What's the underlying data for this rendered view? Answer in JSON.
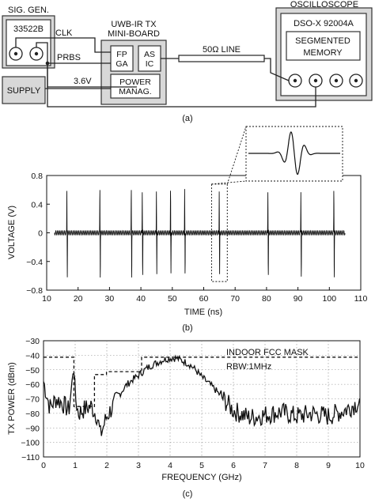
{
  "diagram": {
    "panel_label": "(a)",
    "sig_gen": {
      "title": "SIG. GEN.",
      "model": "33522B"
    },
    "tx_board": {
      "title_line1": "UWB-IR TX",
      "title_line2": "MINI-BOARD"
    },
    "fpga": {
      "line1": "FP",
      "line2": "GA"
    },
    "asic": {
      "line1": "AS",
      "line2": "IC"
    },
    "power": {
      "line1": "POWER",
      "line2": "MANAG."
    },
    "supply": "SUPPLY",
    "clk": "CLK",
    "prbs": "PRBS",
    "voltage": "3.6V",
    "line": "50Ω LINE",
    "scope": {
      "title": "OSCILLOSCOPE",
      "model": "DSO-X 92004A",
      "mem_line1": "SEGMENTED",
      "mem_line2": "MEMORY"
    }
  },
  "chart_data": [
    {
      "type": "line",
      "panel_label": "(b)",
      "xlabel": "TIME (ns)",
      "ylabel": "VOLTAGE (V)",
      "xlim": [
        10,
        110
      ],
      "ylim": [
        -0.8,
        0.8
      ],
      "xticks": [
        10,
        20,
        30,
        40,
        50,
        60,
        70,
        80,
        90,
        100,
        110
      ],
      "yticks": [
        -0.8,
        -0.4,
        0,
        0.4,
        0.8
      ],
      "ytick_labels": [
        "−0.8",
        "−0.4",
        "0",
        "0.4",
        "0.8"
      ],
      "grid": false,
      "pulse_times": [
        16.5,
        27,
        37,
        40.5,
        45,
        49.5,
        54,
        65,
        80.5,
        91,
        101.5
      ],
      "pulse_peak": 0.62,
      "pulse_trough": -0.62,
      "baseline_ripple": 0.03,
      "series": [
        {
          "values": []
        }
      ],
      "inset": {
        "zoom_window_ns": [
          62.5,
          67.5
        ]
      }
    },
    {
      "type": "line",
      "panel_label": "(c)",
      "xlabel": "FREQUENCY (GHz)",
      "ylabel": "TX POWER (dBm)",
      "xlim": [
        0,
        10
      ],
      "ylim": [
        -110,
        -30
      ],
      "xticks": [
        0,
        1,
        2,
        3,
        4,
        5,
        6,
        7,
        8,
        9,
        10
      ],
      "yticks": [
        -110,
        -100,
        -90,
        -80,
        -70,
        -60,
        -50,
        -40,
        -30
      ],
      "ytick_labels": [
        "−110",
        "−100",
        "−90",
        "−80",
        "−70",
        "−60",
        "−50",
        "−40",
        "−30"
      ],
      "grid": true,
      "annotations": [
        "INDOOR FCC MASK",
        "RBW:1MHz"
      ],
      "series": [
        {
          "style": "dashed",
          "x": [
            0,
            0.96,
            0.96,
            1.61,
            1.61,
            1.99,
            1.99,
            3.1,
            3.1,
            10.6
          ],
          "values": [
            -41.3,
            -41.3,
            -75.3,
            -75.3,
            -53.3,
            -53.3,
            -51.3,
            -51.3,
            -41.3,
            -41.3
          ]
        },
        {
          "style": "solid",
          "x": [
            0,
            0.2,
            0.4,
            0.6,
            0.8,
            0.9,
            0.95,
            1.0,
            1.1,
            1.3,
            1.5,
            1.7,
            1.8,
            2.0,
            2.2,
            2.4,
            2.6,
            2.8,
            3.0,
            3.2,
            3.4,
            3.6,
            3.8,
            4.0,
            4.2,
            4.4,
            4.6,
            4.8,
            5.0,
            5.2,
            5.4,
            5.6,
            5.8,
            6.0,
            6.5,
            7.0,
            7.5,
            8.0,
            8.5,
            9.0,
            9.5,
            10.0
          ],
          "values": [
            -58,
            -76,
            -70,
            -73,
            -78,
            -60,
            -43,
            -68,
            -80,
            -77,
            -75,
            -82,
            -95,
            -82,
            -75,
            -67,
            -61,
            -57,
            -54,
            -50,
            -47,
            -45,
            -43,
            -42,
            -42,
            -44,
            -46,
            -50,
            -55,
            -59,
            -63,
            -68,
            -73,
            -78,
            -83,
            -81,
            -79,
            -82,
            -80,
            -82,
            -78,
            -72
          ]
        }
      ]
    }
  ]
}
